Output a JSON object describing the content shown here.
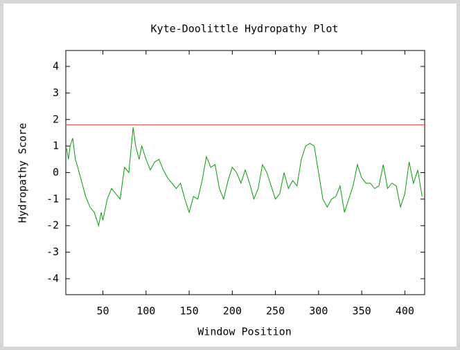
{
  "chart_data": {
    "type": "line",
    "title": "Kyte-Doolittle Hydropathy Plot",
    "x_label": "Window Position",
    "y_label": "Hydropathy Score",
    "x": [
      8,
      10,
      12,
      15,
      18,
      20,
      25,
      30,
      35,
      40,
      45,
      48,
      50,
      55,
      60,
      65,
      70,
      75,
      80,
      85,
      88,
      92,
      95,
      100,
      105,
      110,
      115,
      120,
      125,
      130,
      135,
      140,
      145,
      150,
      155,
      160,
      165,
      170,
      175,
      180,
      185,
      190,
      195,
      200,
      205,
      210,
      215,
      220,
      225,
      230,
      235,
      240,
      245,
      250,
      255,
      260,
      265,
      270,
      275,
      280,
      285,
      290,
      295,
      300,
      305,
      310,
      315,
      320,
      325,
      330,
      335,
      340,
      345,
      350,
      355,
      360,
      365,
      370,
      375,
      380,
      385,
      390,
      395,
      400,
      405,
      410,
      415,
      420
    ],
    "values": [
      0.9,
      0.5,
      1.0,
      1.3,
      0.5,
      0.3,
      -0.3,
      -0.9,
      -1.3,
      -1.5,
      -2.0,
      -1.5,
      -1.8,
      -1.0,
      -0.6,
      -0.8,
      -1.0,
      0.2,
      0.0,
      1.7,
      1.0,
      0.5,
      1.0,
      0.5,
      0.1,
      0.4,
      0.5,
      0.1,
      -0.2,
      -0.4,
      -0.6,
      -0.4,
      -1.0,
      -1.5,
      -0.9,
      -1.0,
      -0.3,
      0.6,
      0.2,
      0.3,
      -0.6,
      -1.0,
      -0.3,
      0.2,
      0.0,
      -0.4,
      0.1,
      -0.4,
      -1.0,
      -0.6,
      0.3,
      0.0,
      -0.5,
      -1.0,
      -0.8,
      0.0,
      -0.6,
      -0.3,
      -0.5,
      0.5,
      1.0,
      1.1,
      1.0,
      0.0,
      -1.0,
      -1.3,
      -1.0,
      -0.9,
      -0.5,
      -1.5,
      -1.0,
      -0.5,
      0.3,
      -0.2,
      -0.4,
      -0.4,
      -0.6,
      -0.5,
      0.3,
      -0.6,
      -0.4,
      -0.5,
      -1.3,
      -0.8,
      0.4,
      -0.4,
      0.1,
      -0.9
    ],
    "color": "#00a000",
    "threshold": {
      "value": 1.8,
      "color": "#e04040"
    },
    "xlim": [
      7,
      423
    ],
    "ylim": [
      -4.6,
      4.6
    ],
    "xticks": [
      50,
      100,
      150,
      200,
      250,
      300,
      350,
      400
    ],
    "yticks": [
      -4,
      -3,
      -2,
      -1,
      0,
      1,
      2,
      3,
      4
    ]
  }
}
